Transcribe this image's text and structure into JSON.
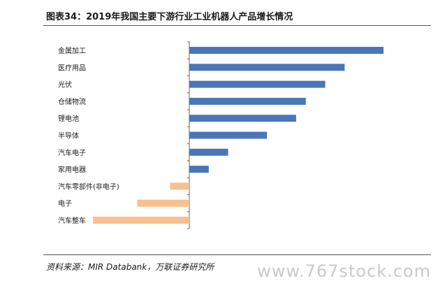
{
  "header": {
    "title": "图表34：2019年我国主要下游行业工业机器人产品增长情况"
  },
  "footer": {
    "source": "资料来源：MIR Databank，万联证券研究所",
    "watermark": "www.767stock.com"
  },
  "colors": {
    "positive": "#4a76b8",
    "negative": "#f7c08e",
    "axis": "#666666",
    "label": "#1a1a1a"
  },
  "chart_data": {
    "type": "bar",
    "orientation": "horizontal",
    "categories": [
      "金属加工",
      "医疗用品",
      "光伏",
      "仓储物流",
      "锂电池",
      "半导体",
      "汽车电子",
      "家用电器",
      "汽车零部件(非电子)",
      "电子",
      "汽车整车"
    ],
    "values": [
      1.0,
      0.8,
      0.7,
      0.6,
      0.55,
      0.4,
      0.2,
      0.1,
      -0.1,
      -0.27,
      -0.5
    ],
    "xlim": [
      -0.5,
      1.0
    ],
    "grid": false,
    "legend": "none",
    "axis_tick_labels": false
  }
}
